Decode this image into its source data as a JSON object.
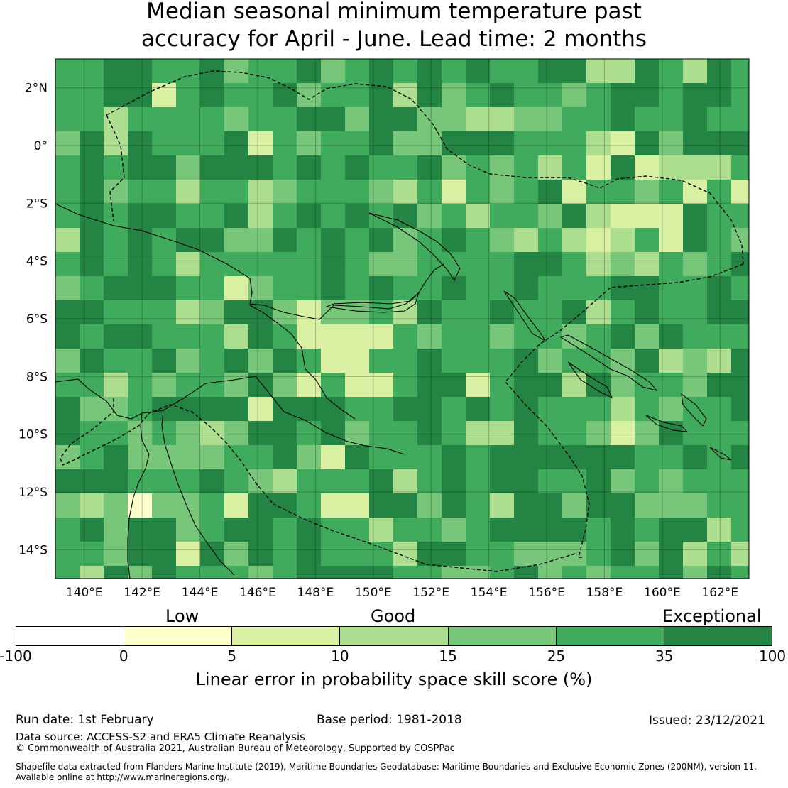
{
  "title": {
    "line1": "Median seasonal minimum temperature past",
    "line2": "accuracy for April - June. Lead time: 2 months"
  },
  "map": {
    "lon_ticks": [
      "140°E",
      "142°E",
      "144°E",
      "146°E",
      "148°E",
      "150°E",
      "152°E",
      "154°E",
      "156°E",
      "158°E",
      "160°E",
      "162°E"
    ],
    "lat_ticks": [
      "2°N",
      "0°",
      "2°S",
      "4°S",
      "6°S",
      "8°S",
      "10°S",
      "12°S",
      "14°S"
    ],
    "lon_range": [
      139.0,
      163.0
    ],
    "lat_range": [
      -15.0,
      3.0
    ],
    "grid": true,
    "skill_colors": [
      "#ffffff",
      "#ffffcc",
      "#d9f0a3",
      "#addd8e",
      "#78c679",
      "#41ab5d",
      "#238443"
    ]
  },
  "legend": {
    "categories": [
      "Low",
      "Good",
      "Exceptional"
    ],
    "boundaries": [
      "-100",
      "0",
      "5",
      "10",
      "15",
      "25",
      "35",
      "100"
    ],
    "label": "Linear error in probability space skill score (%)"
  },
  "footer": {
    "run_date": "Run date: 1st February",
    "base_period": "Base period: 1981-2018",
    "issued": "Issued: 23/12/2021",
    "data_source": "Data source: ACCESS-S2 and ERA5 Climate Reanalysis",
    "copyright": "© Commonwealth of Australia 2021, Australian Bureau of Meteorology, Supported by COSPPac",
    "shapefile1": "Shapefile data extracted from Flanders Marine Institute (2019), Maritime Boundaries Geodatabase: Maritime Boundaries and Exclusive Economic Zones (200NM), version 11.",
    "shapefile2": "Available online at http://www.marineregions.org/."
  }
}
